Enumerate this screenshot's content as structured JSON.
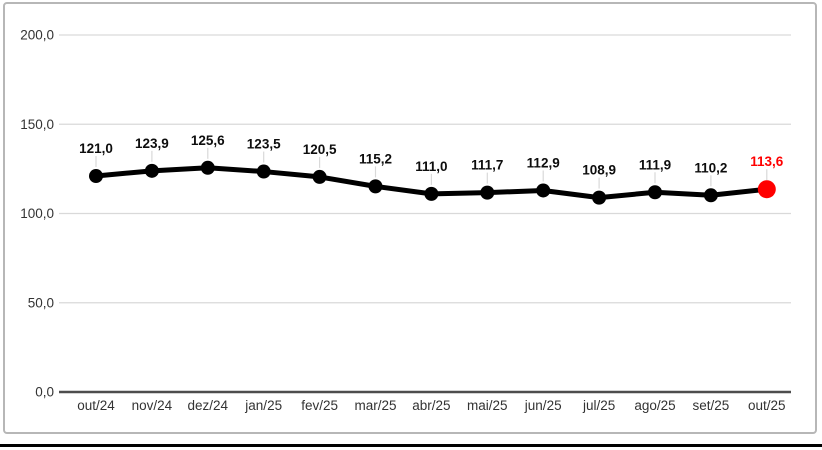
{
  "chart_data": {
    "type": "line",
    "title": "",
    "xlabel": "",
    "ylabel": "",
    "categories": [
      "out/24",
      "nov/24",
      "dez/24",
      "jan/25",
      "fev/25",
      "mar/25",
      "abr/25",
      "mai/25",
      "jun/25",
      "jul/25",
      "ago/25",
      "set/25",
      "out/25"
    ],
    "values": [
      121.0,
      123.9,
      125.6,
      123.5,
      120.5,
      115.2,
      111.0,
      111.7,
      112.9,
      108.9,
      111.9,
      110.2,
      113.6
    ],
    "value_labels": [
      "121,0",
      "123,9",
      "125,6",
      "123,5",
      "120,5",
      "115,2",
      "111,0",
      "111,7",
      "112,9",
      "108,9",
      "111,9",
      "110,2",
      "113,6"
    ],
    "y_ticks": [
      {
        "label": "0,0",
        "value": 0
      },
      {
        "label": "50,0",
        "value": 50
      },
      {
        "label": "100,0",
        "value": 100
      },
      {
        "label": "150,0",
        "value": 150
      },
      {
        "label": "200,0",
        "value": 200
      }
    ],
    "ylim": [
      0,
      200
    ],
    "grid": true,
    "legend": "none",
    "decimal_separator": ",",
    "highlight_index": 12,
    "colors": {
      "series_line": "#000000",
      "marker": "#000000",
      "highlight": "#ff0000",
      "data_label": "#0d0d0d",
      "highlight_label": "#ff0000",
      "gridline": "#d9d9d9",
      "baseline": "#4d4d4d",
      "axis_text": "#333333",
      "leader_line": "#d9d9d9",
      "frame_border": "#b7b7b7",
      "bottom_rule": "#000000",
      "background": "#ffffff"
    }
  }
}
